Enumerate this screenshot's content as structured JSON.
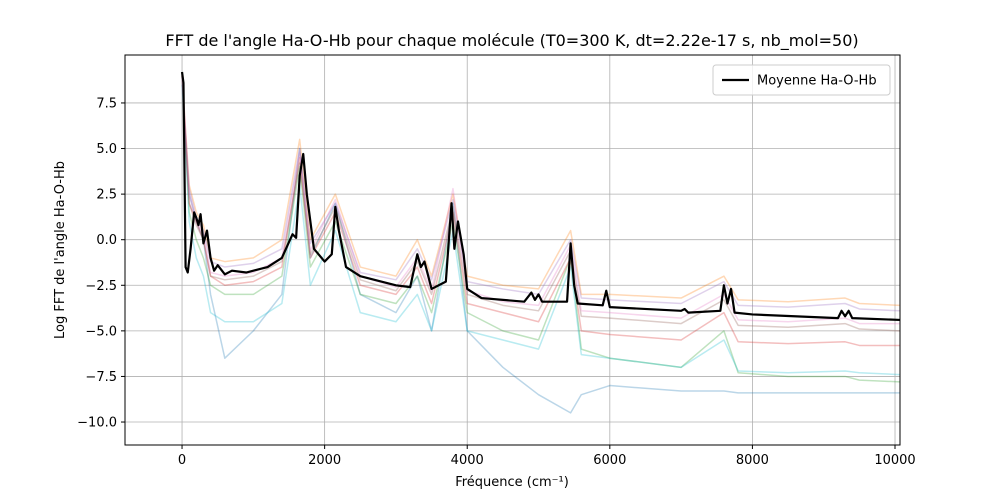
{
  "chart_data": {
    "type": "line",
    "title": "FFT de l'angle Ha-O-Hb pour chaque molécule (T0=300 K, dt=2.22e-17 s, nb_mol=50)",
    "x_label": "Fréquence (cm⁻¹)",
    "y_label": "Log FFT de l'angle Ha-O-Hb",
    "xlim": [
      -800,
      10070
    ],
    "ylim": [
      -11.26,
      10.13
    ],
    "xticks": [
      0,
      2000,
      4000,
      6000,
      8000,
      10000
    ],
    "yticks": [
      {
        "value": -10,
        "label": "−10.0"
      },
      {
        "value": -7.5,
        "label": "−7.5"
      },
      {
        "value": -5,
        "label": "−5.0"
      },
      {
        "value": -2.5,
        "label": "−2.5"
      },
      {
        "value": 0,
        "label": "0.0"
      },
      {
        "value": 2.5,
        "label": "2.5"
      },
      {
        "value": 5,
        "label": "5.0"
      },
      {
        "value": 7.5,
        "label": "7.5"
      }
    ],
    "grid": true,
    "legend": "upper right",
    "x": [
      0,
      100,
      200,
      300,
      400,
      600,
      1000,
      1400,
      1650,
      1800,
      2150,
      2500,
      3000,
      3300,
      3500,
      3800,
      4000,
      4500,
      5000,
      5450,
      5600,
      6000,
      7000,
      7600,
      7800,
      8500,
      9300,
      9500,
      10070
    ],
    "series": [
      {
        "color": "#1f77b4",
        "values": [
          8.5,
          2.5,
          1,
          0,
          -3,
          -6.5,
          -5,
          -3,
          5,
          -1,
          2,
          -3,
          -4,
          -2,
          -5,
          2,
          -5,
          -7,
          -8.5,
          -9.5,
          -8.5,
          -8,
          -8.3,
          -8.3,
          -8.4,
          -8.4,
          -8.4,
          -8.4,
          -8.4
        ]
      },
      {
        "color": "#ff7f0e",
        "values": [
          9,
          3,
          1.5,
          0.8,
          -1,
          -1.2,
          -1,
          0,
          5.5,
          0,
          2.5,
          -1.5,
          -2,
          0,
          -2,
          2.5,
          -2,
          -2.5,
          -2.7,
          0.5,
          -3,
          -3,
          -3.2,
          -2,
          -3.3,
          -3.4,
          -3.2,
          -3.5,
          -3.6
        ]
      },
      {
        "color": "#2ca02c",
        "values": [
          9.2,
          1.5,
          0,
          -1,
          -2.5,
          -3,
          -3,
          -2,
          4,
          -1.5,
          1,
          -3,
          -3.5,
          -2,
          -4,
          1,
          -4,
          -5,
          -5.5,
          -1,
          -6,
          -6.5,
          -7,
          -5,
          -7.3,
          -7.5,
          -7.5,
          -7.7,
          -7.8
        ]
      },
      {
        "color": "#d62728",
        "values": [
          9,
          2,
          1,
          0,
          -2,
          -2.5,
          -2.3,
          -1.5,
          4.5,
          -1,
          1.5,
          -2.5,
          -3,
          -1.5,
          -3.5,
          1.5,
          -3.5,
          -4,
          -4.5,
          -1,
          -5,
          -5.2,
          -5.5,
          -4,
          -5.6,
          -5.7,
          -5.6,
          -5.8,
          -5.8
        ]
      },
      {
        "color": "#9467bd",
        "values": [
          9,
          2.8,
          1.2,
          0.5,
          -1.2,
          -1.5,
          -1.3,
          -0.5,
          5,
          -0.2,
          2,
          -1.8,
          -2.2,
          -0.5,
          -2.2,
          2.2,
          -2.3,
          -2.7,
          -3,
          0,
          -3.2,
          -3.3,
          -3.5,
          -2.3,
          -3.6,
          -3.7,
          -3.5,
          -3.8,
          -3.9
        ]
      },
      {
        "color": "#17becf",
        "values": [
          9,
          1,
          -1,
          -2,
          -4,
          -4.5,
          -4.5,
          -3.5,
          3,
          -2.5,
          0.5,
          -4,
          -4.5,
          -3,
          -5,
          0.5,
          -5,
          -5.5,
          -6,
          -1.5,
          -6.3,
          -6.5,
          -7,
          -5.5,
          -7.2,
          -7.3,
          -7.2,
          -7.3,
          -7.4
        ]
      },
      {
        "color": "#8c564b",
        "values": [
          9,
          2,
          0.8,
          0,
          -2,
          -2.2,
          -2,
          -1.2,
          4.2,
          -0.8,
          1.8,
          -2.2,
          -2.8,
          -1.2,
          -3,
          1.8,
          -3,
          -3.6,
          -3.9,
          -0.6,
          -4.2,
          -4.3,
          -4.6,
          -3.3,
          -4.7,
          -4.8,
          -4.6,
          -4.9,
          -5
        ]
      },
      {
        "color": "#e377c2",
        "values": [
          9,
          2.5,
          1,
          0.3,
          -1.8,
          -2,
          -1.8,
          -1,
          4.8,
          -0.6,
          2.2,
          -2,
          -2.6,
          -1,
          -2.8,
          2.8,
          -2.8,
          -3.4,
          -3.6,
          -0.3,
          -3.9,
          -4,
          -4.3,
          -3,
          -4.4,
          -4.5,
          -4.3,
          -4.6,
          -4.6
        ]
      },
      {
        "name": "Moyenne Ha-O-Hb",
        "color": "#000000",
        "x": [
          0,
          20,
          50,
          80,
          120,
          170,
          200,
          230,
          260,
          300,
          350,
          400,
          450,
          500,
          600,
          700,
          900,
          1200,
          1400,
          1550,
          1600,
          1650,
          1700,
          1750,
          1850,
          2000,
          2100,
          2150,
          2200,
          2300,
          2500,
          3000,
          3200,
          3300,
          3350,
          3400,
          3500,
          3700,
          3780,
          3820,
          3870,
          3950,
          4000,
          4200,
          4800,
          4900,
          4950,
          5000,
          5050,
          5400,
          5450,
          5500,
          5550,
          5900,
          5950,
          6000,
          7000,
          7050,
          7100,
          7550,
          7600,
          7650,
          7700,
          7750,
          8000,
          9200,
          9250,
          9300,
          9350,
          9400,
          10070
        ],
        "values": [
          9.2,
          8.6,
          -1.5,
          -1.8,
          -0.5,
          1.5,
          1.2,
          0.8,
          1.4,
          -0.2,
          0.5,
          -1.0,
          -1.7,
          -1.4,
          -1.9,
          -1.7,
          -1.8,
          -1.5,
          -1.0,
          0.3,
          0.1,
          3.5,
          4.7,
          2.5,
          -0.5,
          -1.2,
          -0.8,
          1.8,
          0.5,
          -1.5,
          -2.0,
          -2.5,
          -2.6,
          -0.8,
          -1.5,
          -1.2,
          -2.7,
          -2.3,
          2.0,
          -0.5,
          1.0,
          -0.8,
          -2.7,
          -3.2,
          -3.4,
          -2.9,
          -3.3,
          -3.0,
          -3.4,
          -3.4,
          -0.2,
          -2.5,
          -3.5,
          -3.6,
          -2.8,
          -3.7,
          -3.9,
          -3.8,
          -4.0,
          -3.9,
          -2.5,
          -3.5,
          -2.7,
          -4.0,
          -4.1,
          -4.3,
          -3.9,
          -4.2,
          -3.9,
          -4.3,
          -4.4
        ]
      }
    ]
  }
}
